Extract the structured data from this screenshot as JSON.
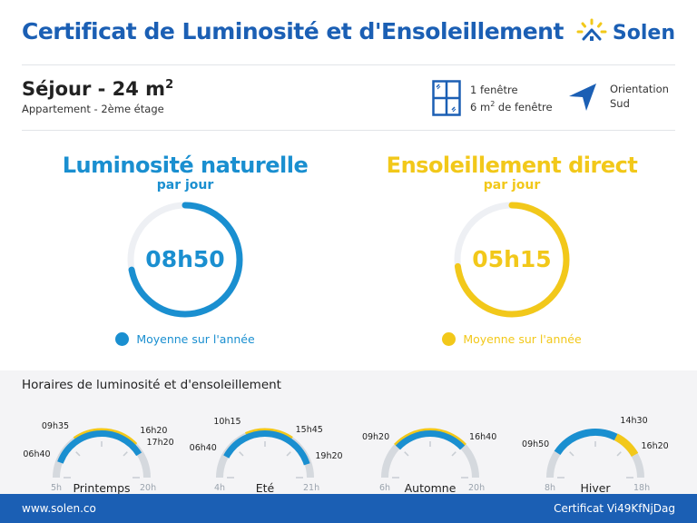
{
  "header": {
    "title": "Certificat de Luminosité et d'Ensoleillement",
    "logo": {
      "text": "Solen",
      "icon": "sun-house-logo-icon"
    }
  },
  "room": {
    "title": "Séjour - 24 m",
    "title_sup": "2",
    "subtitle": "Appartement - 2ème étage"
  },
  "windows": {
    "icon": "window-icon",
    "line1": "1 fenêtre",
    "line2_prefix": "6 m",
    "line2_sup": "2",
    "line2_suffix": " de fenêtre"
  },
  "orientation": {
    "icon": "direction-arrow-icon",
    "label": "Orientation",
    "value": "Sud"
  },
  "colors": {
    "brand_blue": "#1b5fb4",
    "luminosity": "#1a8fd0",
    "sunshine": "#f2c81a",
    "track": "#eef0f4",
    "gauge_track": "#d5d9de"
  },
  "luminosity": {
    "title": "Luminosité naturelle",
    "subtitle": "par jour",
    "value": "08h50",
    "fraction": 0.72,
    "legend": "Moyenne sur l'année"
  },
  "sunshine": {
    "title": "Ensoleillement direct",
    "subtitle": "par jour",
    "value": "05h15",
    "fraction": 0.73,
    "legend": "Moyenne sur l'année"
  },
  "schedule": {
    "title": "Horaires de luminosité et d'ensoleillement",
    "seasons": [
      {
        "name": "Printemps",
        "start_axis": "5h",
        "end_axis": "20h",
        "axis_min": 5,
        "axis_max": 20,
        "lum_start": "06h40",
        "lum_end": "17h20",
        "sun_start": "09h35",
        "sun_end": "16h20"
      },
      {
        "name": "Eté",
        "start_axis": "4h",
        "end_axis": "21h",
        "axis_min": 4,
        "axis_max": 21,
        "lum_start": "06h40",
        "lum_end": "19h20",
        "sun_start": "10h15",
        "sun_end": "15h45"
      },
      {
        "name": "Automne",
        "start_axis": "6h",
        "end_axis": "20h",
        "axis_min": 6,
        "axis_max": 20,
        "lum_start": "09h20",
        "lum_end": "16h40",
        "sun_start": "09h20",
        "sun_end": "16h40"
      },
      {
        "name": "Hiver",
        "start_axis": "8h",
        "end_axis": "18h",
        "axis_min": 8,
        "axis_max": 18,
        "lum_start": "09h50",
        "lum_end": "14h30",
        "sun_start": "14h30",
        "sun_end": "16h20"
      }
    ]
  },
  "footer": {
    "website": "www.solen.co",
    "certificate": "Certificat Vi49KfNjDag"
  }
}
